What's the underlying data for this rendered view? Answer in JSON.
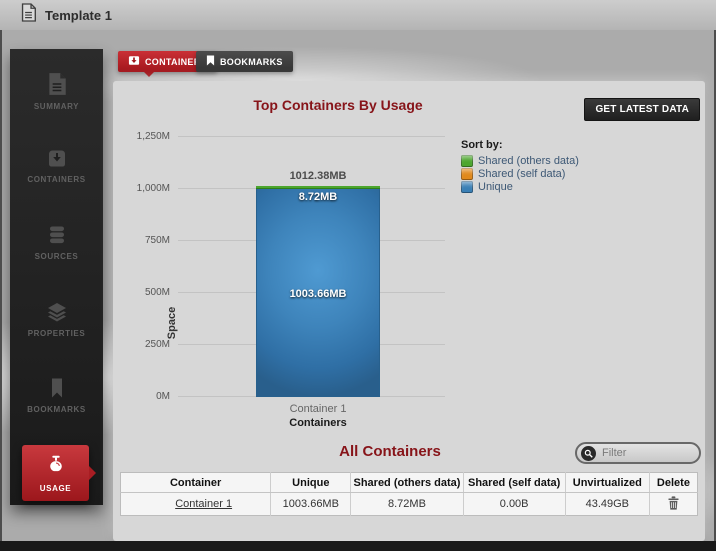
{
  "window": {
    "title": "Template 1",
    "title_icon": "document-icon"
  },
  "sidebar": {
    "items": [
      {
        "label": "SUMMARY",
        "icon": "document-icon",
        "active": false
      },
      {
        "label": "CONTAINERS",
        "icon": "inbox-icon",
        "active": false
      },
      {
        "label": "SOURCES",
        "icon": "database-icon",
        "active": false
      },
      {
        "label": "PROPERTIES",
        "icon": "layers-icon",
        "active": false
      },
      {
        "label": "BOOKMARKS",
        "icon": "bookmark-icon",
        "active": false
      },
      {
        "label": "USAGE",
        "icon": "scale-icon",
        "active": true
      }
    ]
  },
  "tabs": [
    {
      "label": "CONTAINERS",
      "icon": "box-icon",
      "active": true
    },
    {
      "label": "BOOKMARKS",
      "icon": "bookmark-icon",
      "active": false
    }
  ],
  "main": {
    "get_latest_label": "GET LATEST DATA"
  },
  "chart_data": {
    "type": "bar",
    "stacked": true,
    "title": "Top Containers By Usage",
    "xlabel": "Containers",
    "ylabel": "Space",
    "categories": [
      "Container 1"
    ],
    "ylim": [
      0,
      1250
    ],
    "yticks": [
      "0M",
      "250M",
      "500M",
      "750M",
      "1,000M",
      "1,250M"
    ],
    "grid": true,
    "legend_position": "right",
    "total_mb": 1012.38,
    "total_label": "1012.38MB",
    "segments": [
      {
        "name": "Shared (others data)",
        "label": "8.72MB",
        "value_mb": 8.72,
        "color": "#4ca62e"
      },
      {
        "name": "Shared (self data)",
        "label": "0.00B",
        "value_mb": 0,
        "color": "#e0891c"
      },
      {
        "name": "Unique",
        "label": "1003.66MB",
        "value_mb": 1003.66,
        "color": "#3a7fb5"
      }
    ]
  },
  "legend": {
    "title": "Sort by:",
    "items": [
      {
        "label": "Shared (others data)",
        "color": "#4ca62e"
      },
      {
        "label": "Shared (self data)",
        "color": "#e0891c"
      },
      {
        "label": "Unique",
        "color": "#3a7fb5"
      }
    ]
  },
  "all_containers": {
    "title": "All Containers",
    "filter_placeholder": "Filter",
    "table": {
      "headers": [
        "Container",
        "Unique",
        "Shared (others data)",
        "Shared (self data)",
        "Unvirtualized",
        "Delete"
      ],
      "rows": [
        {
          "container": "Container 1",
          "unique": "1003.66MB",
          "shared_others": "8.72MB",
          "shared_self": "0.00B",
          "unvirtualized": "43.49GB"
        }
      ]
    }
  },
  "colors": {
    "accent_red": "#a1151b",
    "title_maroon": "#871419",
    "panel_bg": "#d7d7d7",
    "sidebar_bg": "#1f1f1f"
  }
}
